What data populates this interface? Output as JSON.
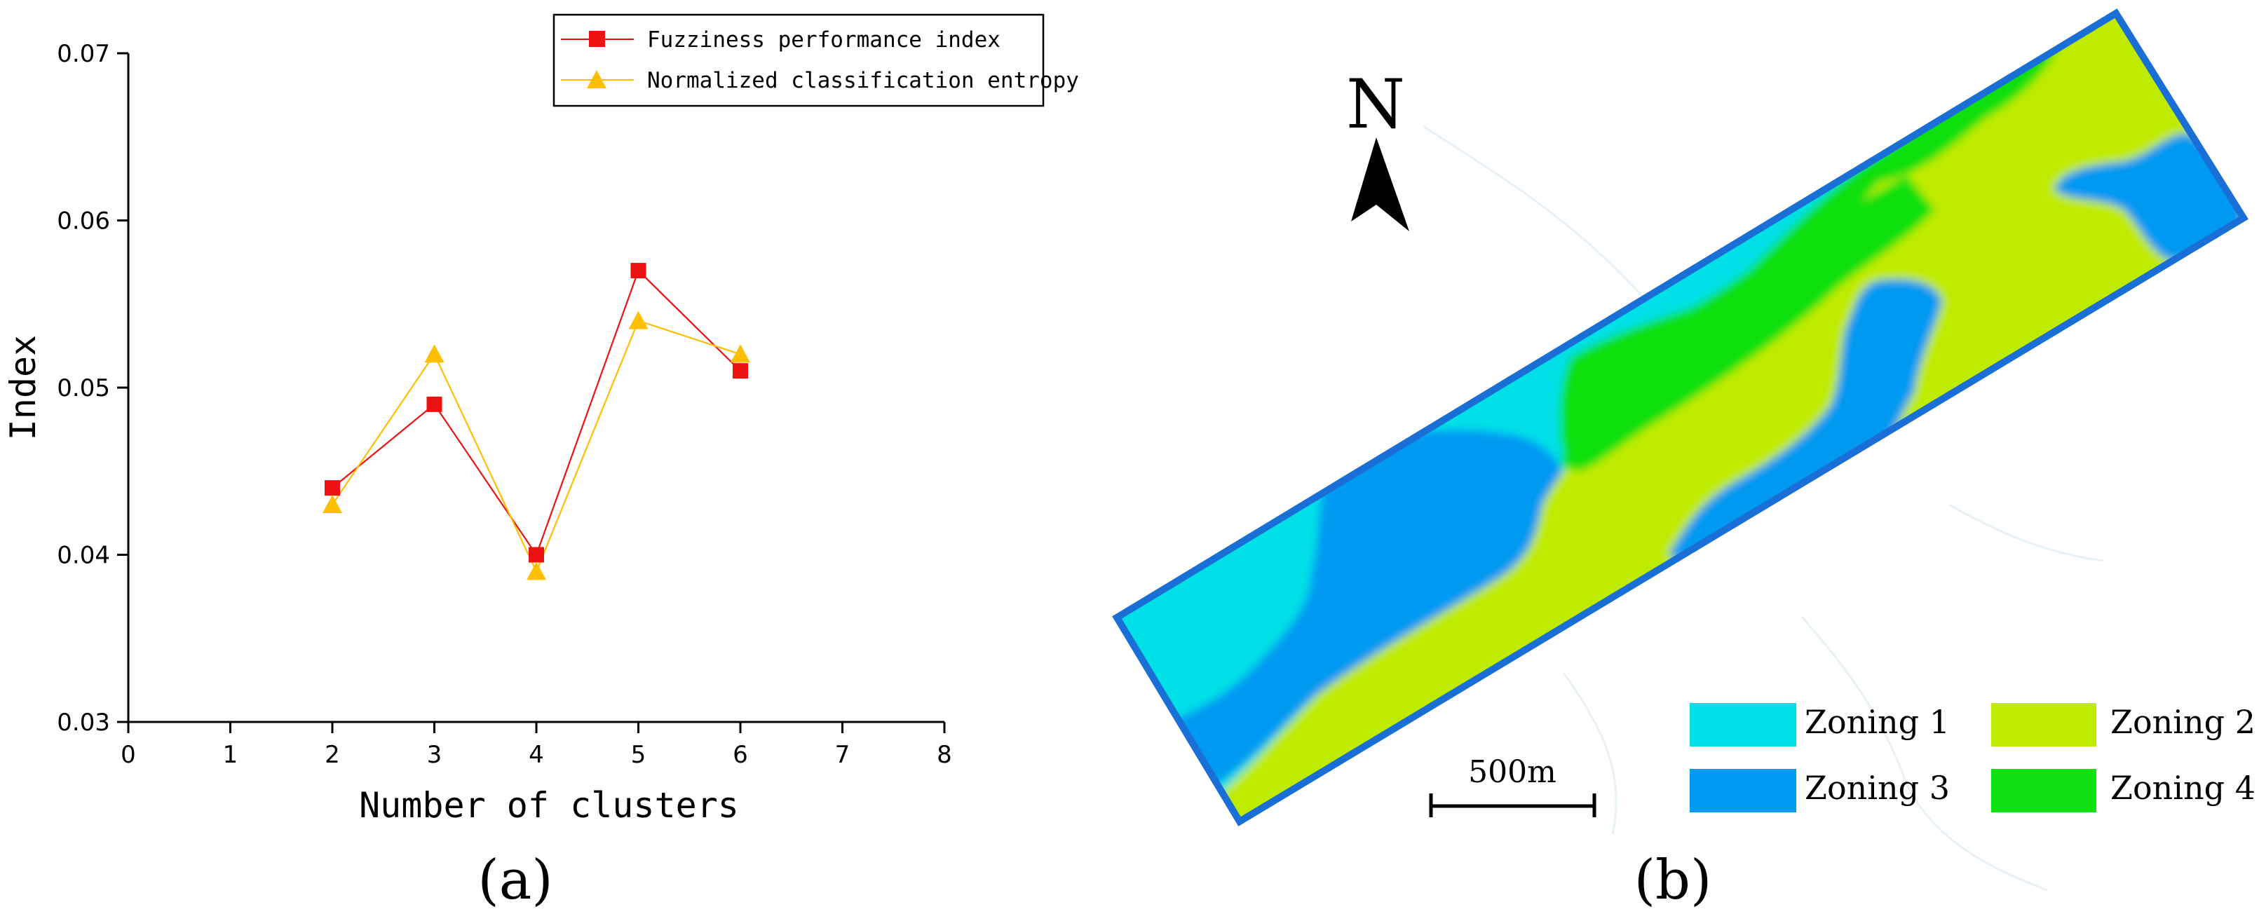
{
  "chart_data": [
    {
      "type": "line",
      "panel_label": "(a)",
      "xlabel": "Number of clusters",
      "ylabel": "Index",
      "xlim": [
        0,
        8
      ],
      "ylim": [
        0.03,
        0.07
      ],
      "x_ticks": [
        "0",
        "1",
        "2",
        "3",
        "4",
        "5",
        "6",
        "7",
        "8"
      ],
      "y_ticks": [
        "0.03",
        "0.04",
        "0.05",
        "0.06",
        "0.07"
      ],
      "grid": false,
      "legend_position": "top-right",
      "x": [
        2,
        3,
        4,
        5,
        6
      ],
      "series": [
        {
          "name": "Fuzziness performance index",
          "marker": "square",
          "color": "#ee1111",
          "values": [
            0.044,
            0.049,
            0.04,
            0.057,
            0.051
          ]
        },
        {
          "name": "Normalized classification entropy",
          "marker": "triangle",
          "color": "#ffbf00",
          "values": [
            0.043,
            0.052,
            0.039,
            0.054,
            0.052
          ]
        }
      ]
    }
  ],
  "map": {
    "panel_label": "(b)",
    "north_label": "N",
    "scale_label": "500m",
    "zones": [
      {
        "name": "Zoning 1",
        "color": "#00e0e6"
      },
      {
        "name": "Zoning 2",
        "color": "#bfeb00"
      },
      {
        "name": "Zoning 3",
        "color": "#0099f2"
      },
      {
        "name": "Zoning 4",
        "color": "#10e010"
      }
    ],
    "border_color": "#1a6fd6"
  }
}
